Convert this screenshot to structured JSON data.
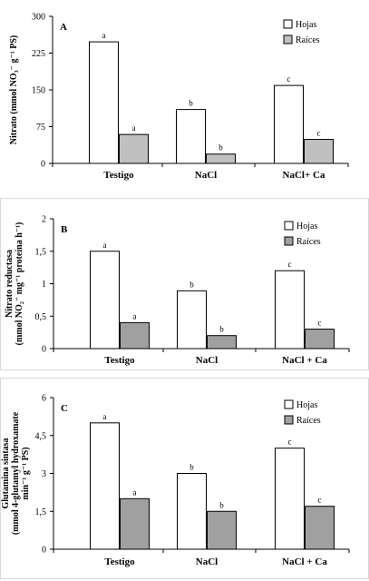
{
  "chart_data": [
    {
      "type": "bar",
      "panel_letter": "A",
      "ylabel": "Nitrato  (mmol NO₃⁻ g⁻¹ PS)",
      "categories": [
        "Testigo",
        "NaCl",
        "NaCl+ Ca"
      ],
      "ylim": [
        0,
        300
      ],
      "yticks": [
        "0",
        "75",
        "150",
        "225",
        "300"
      ],
      "series": [
        {
          "name": "Hojas",
          "color": "#ffffff",
          "values": [
            248,
            110,
            159
          ],
          "letters": [
            "a",
            "b",
            "c"
          ]
        },
        {
          "name": "Raíces",
          "color": "#c0c0c0",
          "values": [
            59,
            19,
            49
          ],
          "letters": [
            "a",
            "b",
            "c"
          ]
        }
      ],
      "legend_position": "top-right",
      "grid": false
    },
    {
      "type": "bar",
      "panel_letter": "B",
      "ylabel": "Nitrato reductasa",
      "ylabel_line2": "(mmol NO₂⁻ mg⁻¹ proteína h⁻¹)",
      "categories": [
        "Testigo",
        "NaCl",
        "NaCl + Ca"
      ],
      "ylim": [
        0,
        2
      ],
      "yticks": [
        "0",
        "0,5",
        "1",
        "1,5",
        "2"
      ],
      "series": [
        {
          "name": "Hojas",
          "color": "#ffffff",
          "values": [
            1.5,
            0.89,
            1.2
          ],
          "letters": [
            "a",
            "b",
            "c"
          ]
        },
        {
          "name": "Raíces",
          "color": "#a0a0a0",
          "values": [
            0.4,
            0.2,
            0.3
          ],
          "letters": [
            "a",
            "b",
            "c"
          ]
        }
      ],
      "legend_position": "top-right",
      "grid": false
    },
    {
      "type": "bar",
      "panel_letter": "C",
      "ylabel": "Glutamina sintasa",
      "ylabel_line2": "(mmol 4-glutamyl hydroxamate",
      "ylabel_line3": "min⁻¹ g⁻¹ PS)",
      "categories": [
        "Testigo",
        "NaCl",
        "NaCl + Ca"
      ],
      "ylim": [
        0,
        6
      ],
      "yticks": [
        "0",
        "1,5",
        "3",
        "4,5",
        "6"
      ],
      "series": [
        {
          "name": "Hojas",
          "color": "#ffffff",
          "values": [
            5.0,
            3.0,
            4.0
          ],
          "letters": [
            "a",
            "b",
            "c"
          ]
        },
        {
          "name": "Raíces",
          "color": "#a0a0a0",
          "values": [
            2.0,
            1.5,
            1.7
          ],
          "letters": [
            "a",
            "b",
            "c"
          ]
        }
      ],
      "legend_position": "top-right",
      "grid": false
    }
  ]
}
